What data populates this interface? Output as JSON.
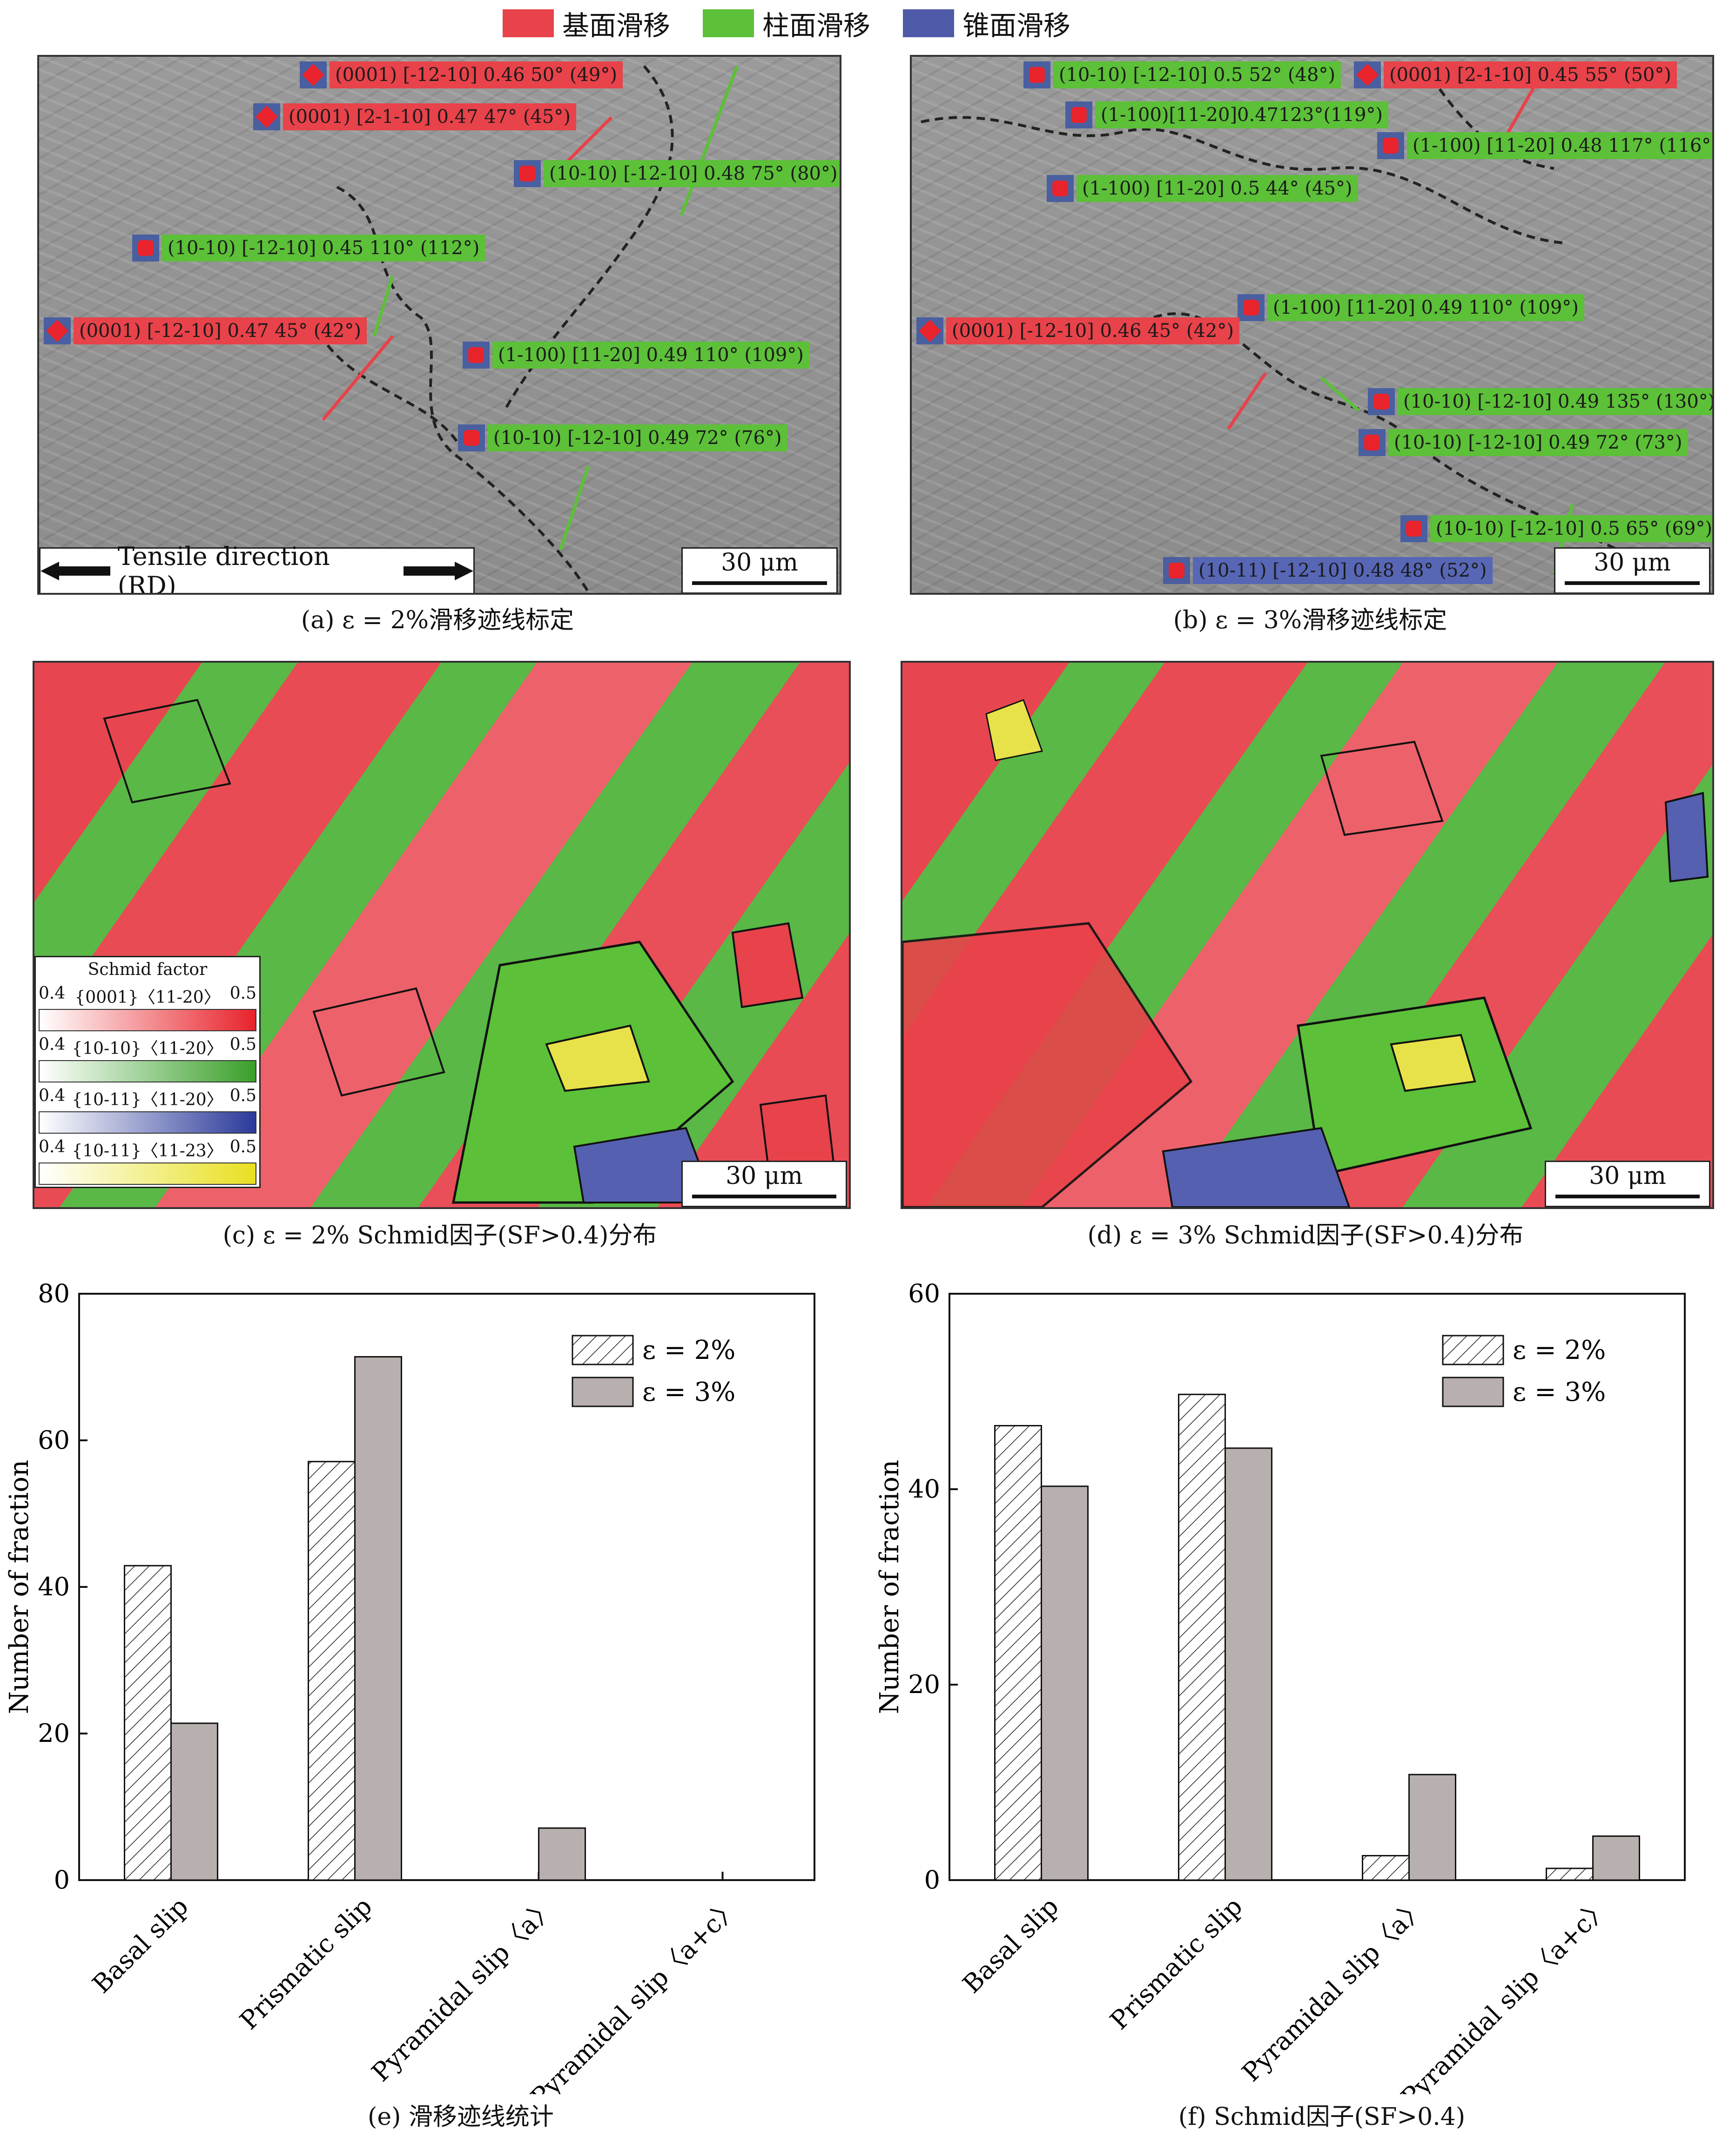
{
  "legend_top": [
    {
      "label": "基面滑移",
      "color": "#e8424a"
    },
    {
      "label": "柱面滑移",
      "color": "#5cc038"
    },
    {
      "label": "锥面滑移",
      "color": "#4f5aa8"
    }
  ],
  "panel_a": {
    "caption": "(a) ε = 2%滑移迹线标定",
    "tags": [
      {
        "text": "(0001) [-12-10] 0.46 50° (49°)",
        "type": "red"
      },
      {
        "text": "(0001) [2-1-10] 0.47 47° (45°)",
        "type": "red"
      },
      {
        "text": "(10-10) [-12-10] 0.48 75° (80°)",
        "type": "green"
      },
      {
        "text": "(10-10) [-12-10] 0.45 110° (112°)",
        "type": "green"
      },
      {
        "text": "(0001) [-12-10] 0.47 45° (42°)",
        "type": "red"
      },
      {
        "text": "(1-100) [11-20] 0.49 110° (109°)",
        "type": "green"
      },
      {
        "text": "(10-10) [-12-10] 0.49 72° (76°)",
        "type": "green"
      }
    ],
    "tensile_label": "Tensile direction (RD)",
    "scale": "30 μm"
  },
  "panel_b": {
    "caption": "(b) ε = 3%滑移迹线标定",
    "tags": [
      {
        "text": "(10-10) [-12-10] 0.5 52° (48°)",
        "type": "green"
      },
      {
        "text": "(0001) [2-1-10] 0.45 55° (50°)",
        "type": "red"
      },
      {
        "text": "(1-100)[11-20]0.47123°(119°)",
        "type": "green"
      },
      {
        "text": "(1-100) [11-20] 0.48 117° (116°)",
        "type": "green"
      },
      {
        "text": "(1-100) [11-20] 0.5 44° (45°)",
        "type": "green"
      },
      {
        "text": "(1-100) [11-20] 0.49 110° (109°)",
        "type": "green"
      },
      {
        "text": "(0001) [-12-10] 0.46 45° (42°)",
        "type": "red"
      },
      {
        "text": "(10-10) [-12-10] 0.49 135° (130°)",
        "type": "green"
      },
      {
        "text": "(10-10) [-12-10] 0.49 72° (73°)",
        "type": "green"
      },
      {
        "text": "(10-10) [-12-10] 0.5 65° (69°)",
        "type": "green"
      },
      {
        "text": "(10-11) [-12-10] 0.48 48° (52°)",
        "type": "blue"
      }
    ],
    "scale": "30 μm"
  },
  "panel_c": {
    "caption": "(c) ε = 2% Schmid因子(SF>0.4)分布",
    "scale": "30 μm",
    "sf_legend": {
      "title": "Schmid factor",
      "rows": [
        {
          "min": "0.4",
          "label": "{0001}〈11-20〉",
          "max": "0.5",
          "color": "#e8232b"
        },
        {
          "min": "0.4",
          "label": "{10-10}〈11-20〉",
          "max": "0.5",
          "color": "#3aa02a"
        },
        {
          "min": "0.4",
          "label": "{10-11}〈11-20〉",
          "max": "0.5",
          "color": "#2b3a9a"
        },
        {
          "min": "0.4",
          "label": "{10-11}〈11-23〉",
          "max": "0.5",
          "color": "#e8e020"
        }
      ]
    }
  },
  "panel_d": {
    "caption": "(d) ε = 3% Schmid因子(SF>0.4)分布",
    "scale": "30 μm"
  },
  "panel_e": {
    "caption": "(e) 滑移迹线统计"
  },
  "panel_f": {
    "caption": "(f) Schmid因子(SF>0.4)"
  },
  "chart_data": [
    {
      "type": "bar",
      "categories": [
        "Basal slip",
        "Prismatic slip",
        "Pyramidal slip〈a〉",
        "Pyramidal slip〈a+c〉"
      ],
      "series": [
        {
          "name": "ε = 2%",
          "values": [
            42.9,
            57.1,
            0,
            0
          ],
          "pattern": "hatched"
        },
        {
          "name": "ε = 3%",
          "values": [
            21.4,
            71.4,
            7.1,
            0
          ],
          "color": "#b8b0ae"
        }
      ],
      "ylabel": "Number of fraction",
      "ylim": [
        0,
        80
      ],
      "yticks": [
        0,
        20,
        40,
        60,
        80
      ],
      "legend": "top-right"
    },
    {
      "type": "bar",
      "categories": [
        "Basal slip",
        "Prismatic slip",
        "Pyramidal slip〈a〉",
        "Pyramidal slip〈a+c〉"
      ],
      "series": [
        {
          "name": "ε = 2%",
          "values": [
            46.5,
            49.7,
            2.5,
            1.2
          ],
          "pattern": "hatched"
        },
        {
          "name": "ε = 3%",
          "values": [
            40.3,
            44.2,
            10.8,
            4.5
          ],
          "color": "#b8b0ae"
        }
      ],
      "ylabel": "Number of fraction",
      "ylim": [
        0,
        60
      ],
      "yticks": [
        0,
        20,
        40,
        60
      ],
      "legend": "top-right"
    }
  ]
}
